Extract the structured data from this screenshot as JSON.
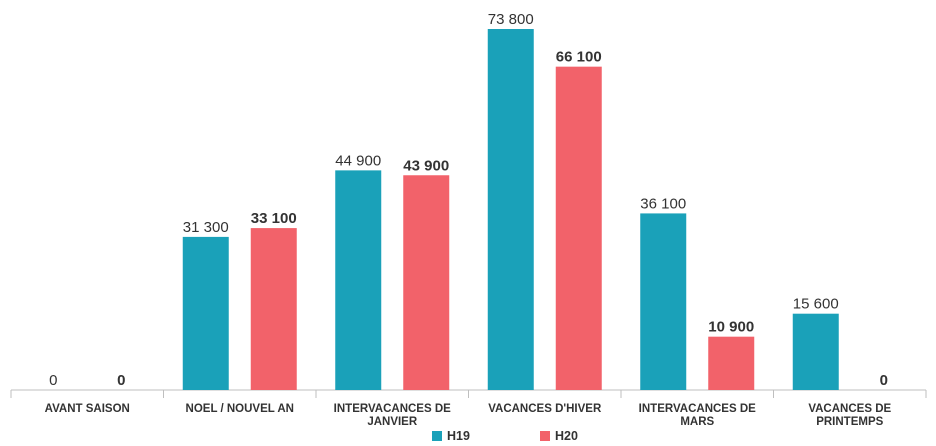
{
  "chart_data": {
    "type": "bar",
    "categories": [
      "AVANT SAISON",
      "NOEL / NOUVEL AN",
      "INTERVACANCES DE JANVIER",
      "VACANCES D'HIVER",
      "INTERVACANCES DE MARS",
      "VACANCES DE PRINTEMPS"
    ],
    "series": [
      {
        "name": "H19",
        "color": "#1aa1b9",
        "values": [
          0,
          31300,
          44900,
          73800,
          36100,
          15600
        ],
        "value_labels": [
          "0",
          "31 300",
          "44 900",
          "73 800",
          "36 100",
          "15 600"
        ]
      },
      {
        "name": "H20",
        "color": "#f2626a",
        "values": [
          0,
          33100,
          43900,
          66100,
          10900,
          0
        ],
        "value_labels": [
          "0",
          "33 100",
          "43 900",
          "66 100",
          "10 900",
          "0"
        ]
      }
    ],
    "legend": "bottom"
  }
}
